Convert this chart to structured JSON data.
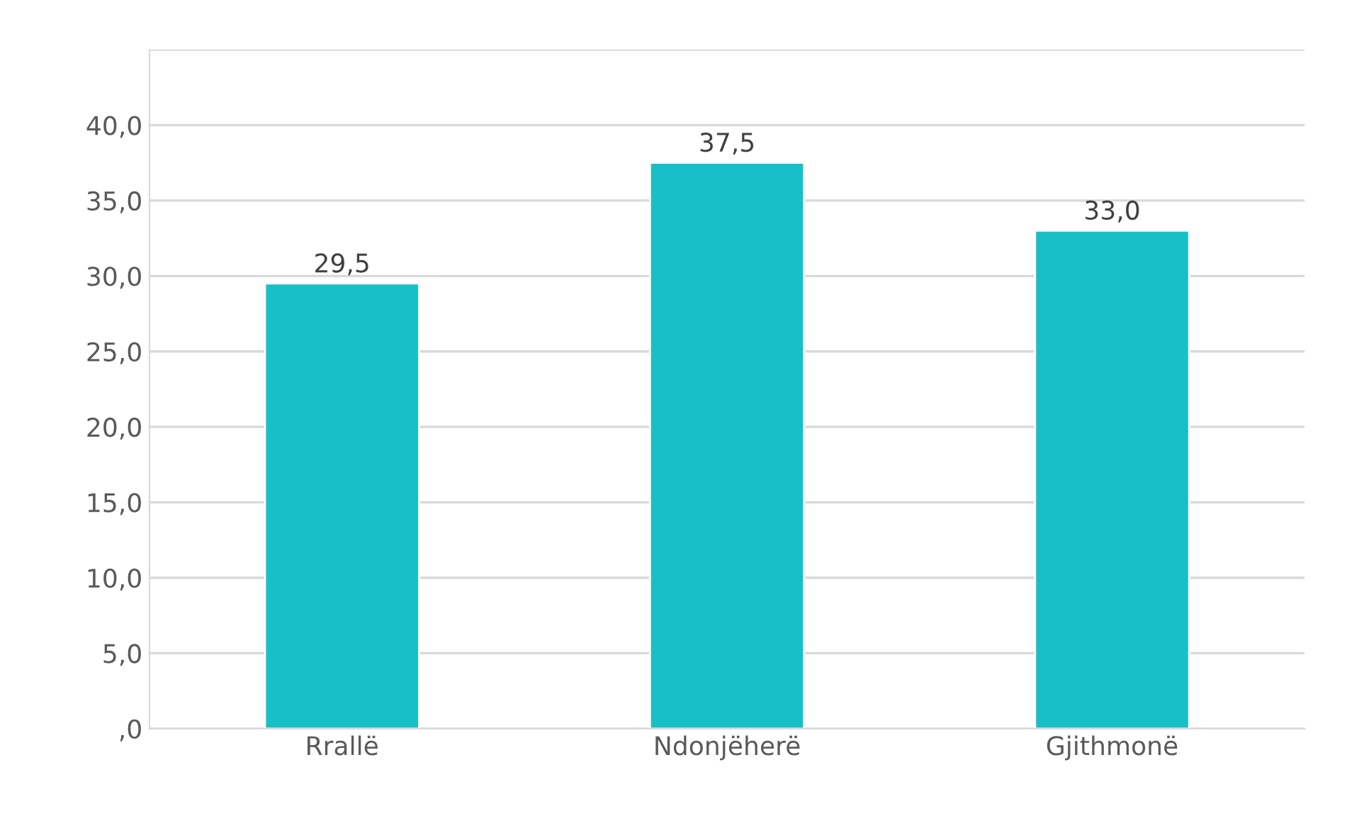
{
  "chart_data": {
    "type": "bar",
    "categories": [
      "Rrallë",
      "Ndonjëherë",
      "Gjithmonë"
    ],
    "values": [
      29.5,
      37.5,
      33.0
    ],
    "value_labels": [
      "29,5",
      "37,5",
      "33,0"
    ],
    "color": "#17c0c6",
    "ylim": [
      0,
      45
    ],
    "yticks": [
      {
        "value": 0,
        "label": ",0"
      },
      {
        "value": 5,
        "label": "5,0"
      },
      {
        "value": 10,
        "label": "10,0"
      },
      {
        "value": 15,
        "label": "15,0"
      },
      {
        "value": 20,
        "label": "20,0"
      },
      {
        "value": 25,
        "label": "25,0"
      },
      {
        "value": 30,
        "label": "30,0"
      },
      {
        "value": 35,
        "label": "35,0"
      },
      {
        "value": 40,
        "label": "40,0"
      },
      {
        "value": 45,
        "label": null
      }
    ],
    "grid": "y"
  }
}
